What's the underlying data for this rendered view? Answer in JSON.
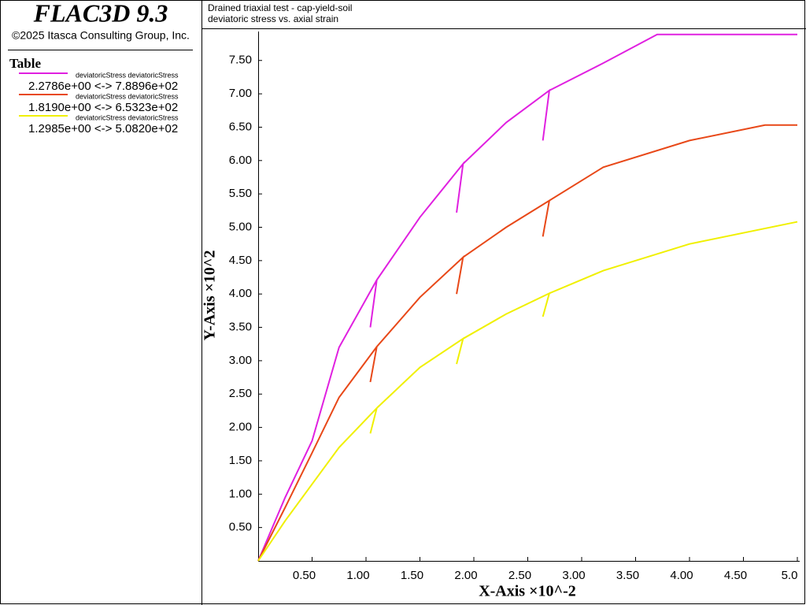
{
  "header": {
    "title": "FLAC3D 9.3",
    "copyright": "©2025 Itasca Consulting Group, Inc."
  },
  "legend": {
    "title": "Table",
    "entries": [
      {
        "label": "deviatoricStress deviatoricStress",
        "range": "2.2786e+00 <-> 7.8896e+02"
      },
      {
        "label": "deviatoricStress deviatoricStress",
        "range": "1.8190e+00 <-> 6.5323e+02"
      },
      {
        "label": "deviatoricStress deviatoricStress",
        "range": "1.2985e+00 <-> 5.0820e+02"
      }
    ]
  },
  "chart_data": {
    "type": "line",
    "title": "Drained triaxial test - cap-yield-soil",
    "subtitle": "deviatoric stress vs. axial strain",
    "x_label": "X-Axis ×10^-2",
    "y_label": "Y-Axis ×10^2",
    "xlim": [
      0,
      5.0
    ],
    "ylim": [
      0,
      7.95
    ],
    "xticks": [
      {
        "value": 0.5,
        "label": "0.50"
      },
      {
        "value": 1,
        "label": "1.00"
      },
      {
        "value": 1.5,
        "label": "1.50"
      },
      {
        "value": 2,
        "label": "2.00"
      },
      {
        "value": 2.5,
        "label": "2.50"
      },
      {
        "value": 3,
        "label": "3.00"
      },
      {
        "value": 3.5,
        "label": "3.50"
      },
      {
        "value": 4,
        "label": "4.00"
      },
      {
        "value": 4.5,
        "label": "4.50"
      },
      {
        "value": 5,
        "label": "5.0"
      }
    ],
    "yticks": [
      {
        "value": 0.5,
        "label": "0.50"
      },
      {
        "value": 1,
        "label": "1.00"
      },
      {
        "value": 1.5,
        "label": "1.50"
      },
      {
        "value": 2,
        "label": "2.00"
      },
      {
        "value": 2.5,
        "label": "2.50"
      },
      {
        "value": 3,
        "label": "3.00"
      },
      {
        "value": 3.5,
        "label": "3.50"
      },
      {
        "value": 4,
        "label": "4.00"
      },
      {
        "value": 4.5,
        "label": "4.50"
      },
      {
        "value": 5,
        "label": "5.00"
      },
      {
        "value": 5.5,
        "label": "5.50"
      },
      {
        "value": 6,
        "label": "6.00"
      },
      {
        "value": 6.5,
        "label": "6.50"
      },
      {
        "value": 7,
        "label": "7.00"
      },
      {
        "value": 7.5,
        "label": "7.50"
      }
    ],
    "grid": false,
    "series": [
      {
        "name": "deviatoricStress deviatoricStress",
        "color": "#e020e0",
        "x": [
          0,
          0.25,
          0.5,
          0.75,
          1.1,
          1.04,
          1.1,
          1.5,
          1.9,
          1.84,
          1.9,
          2.3,
          2.7,
          2.64,
          2.7,
          3.2,
          3.7,
          5.0
        ],
        "values": [
          0,
          0.95,
          1.8,
          3.2,
          4.21,
          3.5,
          4.21,
          5.15,
          5.95,
          5.22,
          5.95,
          6.57,
          7.05,
          6.3,
          7.05,
          7.46,
          7.8896,
          7.8896
        ]
      },
      {
        "name": "deviatoricStress deviatoricStress",
        "color": "#e84818",
        "x": [
          0,
          0.25,
          0.5,
          0.75,
          1.1,
          1.04,
          1.1,
          1.5,
          1.9,
          1.84,
          1.9,
          2.3,
          2.7,
          2.64,
          2.7,
          3.2,
          4.0,
          4.7,
          5.0
        ],
        "values": [
          0,
          0.8,
          1.62,
          2.45,
          3.21,
          2.68,
          3.21,
          3.95,
          4.55,
          4.0,
          4.55,
          5.0,
          5.4,
          4.86,
          5.4,
          5.9,
          6.3,
          6.5323,
          6.5323
        ]
      },
      {
        "name": "deviatoricStress deviatoricStress",
        "color": "#f0f000",
        "x": [
          0,
          0.25,
          0.5,
          0.75,
          1.1,
          1.04,
          1.1,
          1.5,
          1.9,
          1.84,
          1.9,
          2.3,
          2.7,
          2.64,
          2.7,
          3.2,
          4.0,
          5.0
        ],
        "values": [
          0,
          0.6,
          1.15,
          1.7,
          2.29,
          1.91,
          2.29,
          2.9,
          3.33,
          2.95,
          3.33,
          3.7,
          4.01,
          3.66,
          4.01,
          4.35,
          4.75,
          5.082
        ]
      }
    ]
  }
}
